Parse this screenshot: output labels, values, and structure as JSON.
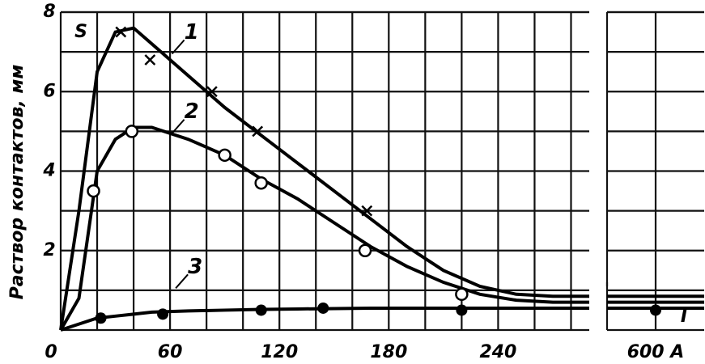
{
  "chart_data": {
    "type": "line",
    "y_label": "Раствор контактов, мм",
    "y_symbol": "S",
    "x_symbol": "I",
    "xlim": [
      0,
      620
    ],
    "xbreak": [
      290,
      580
    ],
    "ylim": [
      0,
      8
    ],
    "xticks": [
      0,
      60,
      120,
      180,
      240,
      {
        "value": 600,
        "label": "600 A"
      }
    ],
    "yticks": [
      2,
      4,
      6,
      8
    ],
    "minor_xticks": [
      20,
      40,
      80,
      100,
      140,
      160,
      200,
      220,
      260,
      280
    ],
    "minor_yticks": [
      1,
      3,
      5,
      7
    ],
    "grid": true,
    "series": [
      {
        "name": "1",
        "color": "#000",
        "marker": "cross",
        "x": [
          0,
          10,
          20,
          30,
          40,
          50,
          70,
          90,
          110,
          130,
          150,
          170,
          190,
          210,
          230,
          250,
          270,
          290,
          580,
          620
        ],
        "values": [
          0,
          3,
          6.5,
          7.5,
          7.6,
          7.2,
          6.4,
          5.6,
          4.9,
          4.2,
          3.5,
          2.8,
          2.1,
          1.5,
          1.1,
          0.9,
          0.85,
          0.85,
          0.85,
          0.85
        ],
        "marker_x": [
          33,
          49,
          83,
          108,
          168
        ],
        "marker_values": [
          7.5,
          6.8,
          6.0,
          5.0,
          3.0
        ],
        "label_x": 70,
        "label_y": 7.4
      },
      {
        "name": "2",
        "color": "#000",
        "marker": "open-circle",
        "x": [
          0,
          10,
          20,
          30,
          40,
          50,
          70,
          90,
          110,
          130,
          150,
          170,
          190,
          210,
          230,
          250,
          270,
          290,
          580,
          620
        ],
        "values": [
          0,
          0.8,
          4.0,
          4.8,
          5.1,
          5.1,
          4.8,
          4.4,
          3.8,
          3.3,
          2.7,
          2.1,
          1.6,
          1.2,
          0.9,
          0.75,
          0.7,
          0.7,
          0.7,
          0.7
        ],
        "marker_x": [
          18,
          39,
          90,
          110,
          167,
          220
        ],
        "marker_values": [
          3.5,
          5.0,
          4.4,
          3.7,
          2.0,
          0.9
        ],
        "label_x": 70,
        "label_y": 5.4
      },
      {
        "name": "3",
        "color": "#000",
        "marker": "dot",
        "x": [
          0,
          10,
          20,
          30,
          40,
          50,
          70,
          90,
          110,
          130,
          150,
          170,
          190,
          210,
          230,
          250,
          270,
          290,
          580,
          620
        ],
        "values": [
          0,
          0.15,
          0.3,
          0.35,
          0.4,
          0.45,
          0.48,
          0.5,
          0.52,
          0.53,
          0.54,
          0.55,
          0.55,
          0.55,
          0.55,
          0.55,
          0.55,
          0.55,
          0.55,
          0.55
        ],
        "marker_x": [
          22,
          56,
          110,
          144,
          220,
          600
        ],
        "marker_values": [
          0.3,
          0.4,
          0.5,
          0.55,
          0.5,
          0.5
        ],
        "label_x": 72,
        "label_y": 1.5
      }
    ]
  }
}
